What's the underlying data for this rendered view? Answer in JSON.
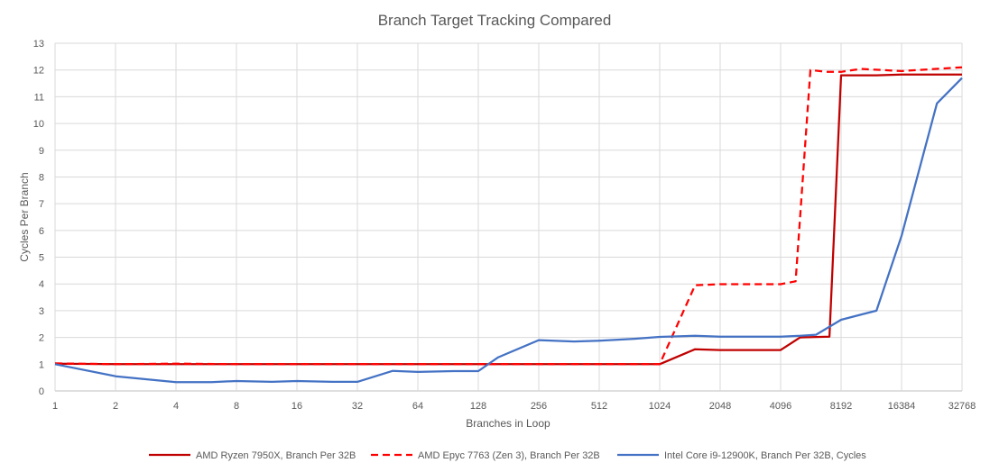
{
  "chart_data": {
    "type": "line",
    "title": "Branch Target Tracking Compared",
    "xlabel": "Branches in Loop",
    "ylabel": "Cycles Per Branch",
    "x_scale": "log2",
    "x_ticks": [
      "1",
      "2",
      "4",
      "8",
      "16",
      "32",
      "64",
      "128",
      "256",
      "512",
      "1024",
      "2048",
      "4096",
      "8192",
      "16384",
      "32768"
    ],
    "y_ticks": [
      "0",
      "1",
      "2",
      "3",
      "4",
      "5",
      "6",
      "7",
      "8",
      "9",
      "10",
      "11",
      "12",
      "13"
    ],
    "ylim": [
      0,
      13
    ],
    "xlim": [
      1,
      32768
    ],
    "grid": "vertical-and-horizontal",
    "legend_position": "bottom",
    "series": [
      {
        "name": "AMD Ryzen 7950X, Branch Per 32B",
        "color": "#c00000",
        "dash": "solid",
        "points": [
          [
            1,
            1.02
          ],
          [
            2,
            1.0
          ],
          [
            4,
            1.0
          ],
          [
            8,
            1.0
          ],
          [
            16,
            1.0
          ],
          [
            32,
            1.0
          ],
          [
            64,
            1.0
          ],
          [
            128,
            1.0
          ],
          [
            256,
            1.0
          ],
          [
            512,
            1.0
          ],
          [
            1024,
            1.0
          ],
          [
            1536,
            1.56
          ],
          [
            2048,
            1.53
          ],
          [
            4096,
            1.53
          ],
          [
            5120,
            2.0
          ],
          [
            7168,
            2.03
          ],
          [
            8192,
            11.8
          ],
          [
            12288,
            11.8
          ],
          [
            16384,
            11.83
          ],
          [
            32768,
            11.83
          ]
        ]
      },
      {
        "name": "AMD Epyc 7763 (Zen 3), Branch Per 32B",
        "color": "#ff0000",
        "dash": "dashed",
        "points": [
          [
            1,
            1.03
          ],
          [
            2,
            1.0
          ],
          [
            4,
            1.02
          ],
          [
            8,
            1.0
          ],
          [
            16,
            1.0
          ],
          [
            32,
            1.0
          ],
          [
            64,
            1.0
          ],
          [
            128,
            1.0
          ],
          [
            256,
            1.0
          ],
          [
            512,
            1.0
          ],
          [
            1024,
            1.0
          ],
          [
            1536,
            3.95
          ],
          [
            2048,
            3.99
          ],
          [
            4096,
            3.99
          ],
          [
            4864,
            4.1
          ],
          [
            5760,
            12.0
          ],
          [
            6900,
            11.93
          ],
          [
            8192,
            11.93
          ],
          [
            10240,
            12.04
          ],
          [
            16384,
            11.96
          ],
          [
            32768,
            12.1
          ]
        ]
      },
      {
        "name": "Intel Core i9-12900K, Branch Per 32B, Cycles",
        "color": "#4472c4",
        "dash": "solid",
        "points": [
          [
            1,
            1.0
          ],
          [
            2,
            0.55
          ],
          [
            4,
            0.33
          ],
          [
            6,
            0.33
          ],
          [
            8,
            0.37
          ],
          [
            12,
            0.34
          ],
          [
            16,
            0.37
          ],
          [
            24,
            0.34
          ],
          [
            32,
            0.34
          ],
          [
            48,
            0.75
          ],
          [
            64,
            0.71
          ],
          [
            96,
            0.74
          ],
          [
            128,
            0.74
          ],
          [
            160,
            1.25
          ],
          [
            256,
            1.9
          ],
          [
            384,
            1.85
          ],
          [
            512,
            1.88
          ],
          [
            768,
            1.95
          ],
          [
            1024,
            2.02
          ],
          [
            1536,
            2.06
          ],
          [
            2048,
            2.03
          ],
          [
            3072,
            2.03
          ],
          [
            4096,
            2.03
          ],
          [
            5120,
            2.06
          ],
          [
            6144,
            2.1
          ],
          [
            8192,
            2.66
          ],
          [
            10240,
            2.85
          ],
          [
            12288,
            3.0
          ],
          [
            16384,
            5.8
          ],
          [
            24576,
            10.75
          ],
          [
            32768,
            11.7
          ]
        ]
      }
    ]
  }
}
